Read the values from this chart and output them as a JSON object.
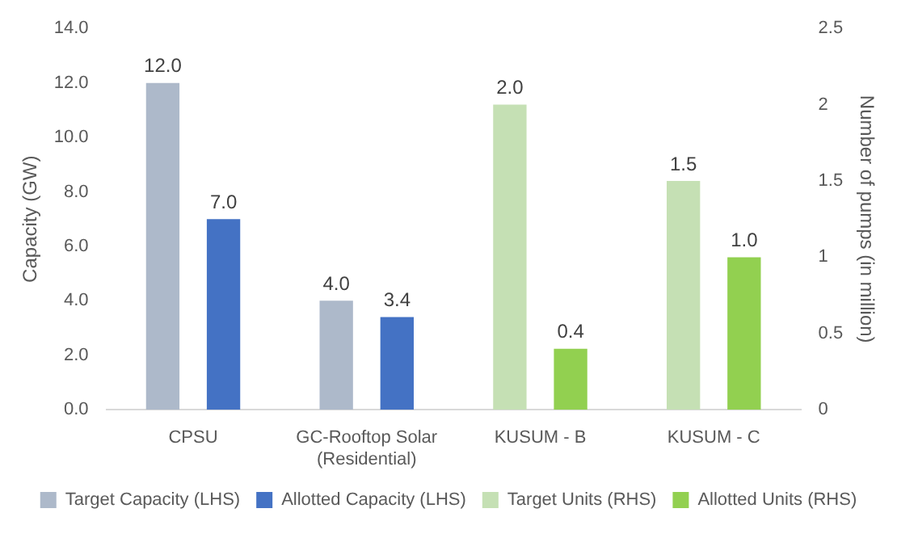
{
  "chart_data": {
    "type": "bar",
    "ylabel": "Capacity (GW)",
    "y2label": "Number of pumps (in million)",
    "categories": [
      "CPSU",
      "GC-Rooftop Solar (Residential)",
      "KUSUM - B",
      "KUSUM - C"
    ],
    "series": [
      {
        "name": "Target Capacity (LHS)",
        "color": "#adb9ca",
        "values": [
          12.0,
          4.0,
          null,
          null
        ],
        "value_labels": [
          "12.0",
          "4.0",
          null,
          null
        ]
      },
      {
        "name": "Allotted Capacity (LHS)",
        "color": "#4472c4",
        "values": [
          7.0,
          3.4,
          null,
          null
        ],
        "value_labels": [
          "7.0",
          "3.4",
          null,
          null
        ]
      },
      {
        "name": "Target Units (RHS)",
        "color": "#c5e0b4",
        "axis": "y2",
        "values": [
          null,
          null,
          2.0,
          1.5
        ],
        "value_labels": [
          null,
          null,
          "2.0",
          "1.5"
        ]
      },
      {
        "name": "Allotted Units (RHS)",
        "color": "#92d050",
        "axis": "y2",
        "values": [
          null,
          null,
          0.4,
          1.0
        ],
        "value_labels": [
          null,
          null,
          "0.4",
          "1.0"
        ]
      }
    ],
    "ylim": [
      0,
      14
    ],
    "yticks": [
      {
        "value": 0,
        "label": "0.0"
      },
      {
        "value": 2,
        "label": "2.0"
      },
      {
        "value": 4,
        "label": "4.0"
      },
      {
        "value": 6,
        "label": "6.0"
      },
      {
        "value": 8,
        "label": "8.0"
      },
      {
        "value": 10,
        "label": "10.0"
      },
      {
        "value": 12,
        "label": "12.0"
      },
      {
        "value": 14,
        "label": "14.0"
      }
    ],
    "y2lim": [
      0,
      2.5
    ],
    "y2ticks": [
      0,
      0.5,
      1,
      1.5,
      2,
      2.5
    ],
    "grid": false,
    "legend": "bottom"
  }
}
